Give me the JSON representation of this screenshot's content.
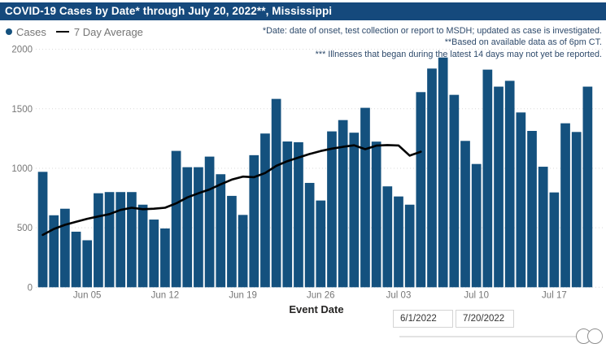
{
  "title": "COVID-19 Cases by Date* through July 20, 2022**, Mississippi",
  "legend": {
    "cases_label": "Cases",
    "avg_label": "7 Day Average"
  },
  "annotations": [
    "*Date: date of onset, test collection or report to MSDH; updated as case is investigated.",
    "**Based on available data as of 6pm CT.",
    "*** Illnesses that began during the latest 14 days may not yet be reported."
  ],
  "colors": {
    "title_bar_bg": "#15497c",
    "bar": "#14517e",
    "avg_line": "#000000",
    "axis_text": "#777777",
    "grid": "#d9d9d9",
    "annotation_text": "#2e4a6b",
    "xlabel_text": "#252423"
  },
  "date_filter": {
    "start_value": "6/1/2022",
    "end_value": "7/20/2022"
  },
  "chart_data": {
    "type": "bar",
    "title": "COVID-19 Cases by Date* through July 20, 2022**, Mississippi",
    "xlabel": "Event Date",
    "ylabel": "",
    "ylim": [
      0,
      2000
    ],
    "ytick_step": 500,
    "grid": true,
    "legend_position": "top-left",
    "x_tick_labels": [
      "Jun 05",
      "Jun 12",
      "Jun 19",
      "Jun 26",
      "Jul 03",
      "Jul 10",
      "Jul 17"
    ],
    "x_tick_indices": [
      4,
      11,
      18,
      25,
      32,
      39,
      46
    ],
    "dates": [
      "6/1/2022",
      "6/2/2022",
      "6/3/2022",
      "6/4/2022",
      "6/5/2022",
      "6/6/2022",
      "6/7/2022",
      "6/8/2022",
      "6/9/2022",
      "6/10/2022",
      "6/11/2022",
      "6/12/2022",
      "6/13/2022",
      "6/14/2022",
      "6/15/2022",
      "6/16/2022",
      "6/17/2022",
      "6/18/2022",
      "6/19/2022",
      "6/20/2022",
      "6/21/2022",
      "6/22/2022",
      "6/23/2022",
      "6/24/2022",
      "6/25/2022",
      "6/26/2022",
      "6/27/2022",
      "6/28/2022",
      "6/29/2022",
      "6/30/2022",
      "7/1/2022",
      "7/2/2022",
      "7/3/2022",
      "7/4/2022",
      "7/5/2022",
      "7/6/2022",
      "7/7/2022",
      "7/8/2022",
      "7/9/2022",
      "7/10/2022",
      "7/11/2022",
      "7/12/2022",
      "7/13/2022",
      "7/14/2022",
      "7/15/2022",
      "7/16/2022",
      "7/17/2022",
      "7/18/2022",
      "7/19/2022",
      "7/20/2022"
    ],
    "series": [
      {
        "name": "Cases",
        "type": "bar",
        "values": [
          970,
          605,
          660,
          467,
          395,
          790,
          800,
          800,
          800,
          694,
          569,
          494,
          1146,
          1009,
          1009,
          1098,
          950,
          768,
          608,
          1110,
          1292,
          1583,
          1225,
          1219,
          877,
          729,
          1310,
          1405,
          1299,
          1508,
          1224,
          848,
          763,
          694,
          1640,
          1838,
          1931,
          1617,
          1230,
          1036,
          1829,
          1686,
          1735,
          1469,
          1314,
          1013,
          797,
          1378,
          1305,
          1686
        ]
      },
      {
        "name": "7 Day Average",
        "type": "line",
        "values": [
          440,
          490,
          525,
          550,
          575,
          595,
          615,
          650,
          668,
          656,
          660,
          668,
          705,
          755,
          790,
          822,
          865,
          905,
          930,
          925,
          960,
          1020,
          1060,
          1090,
          1120,
          1145,
          1165,
          1180,
          1193,
          1160,
          1190,
          1195,
          1192,
          1106,
          1139
        ]
      }
    ]
  }
}
